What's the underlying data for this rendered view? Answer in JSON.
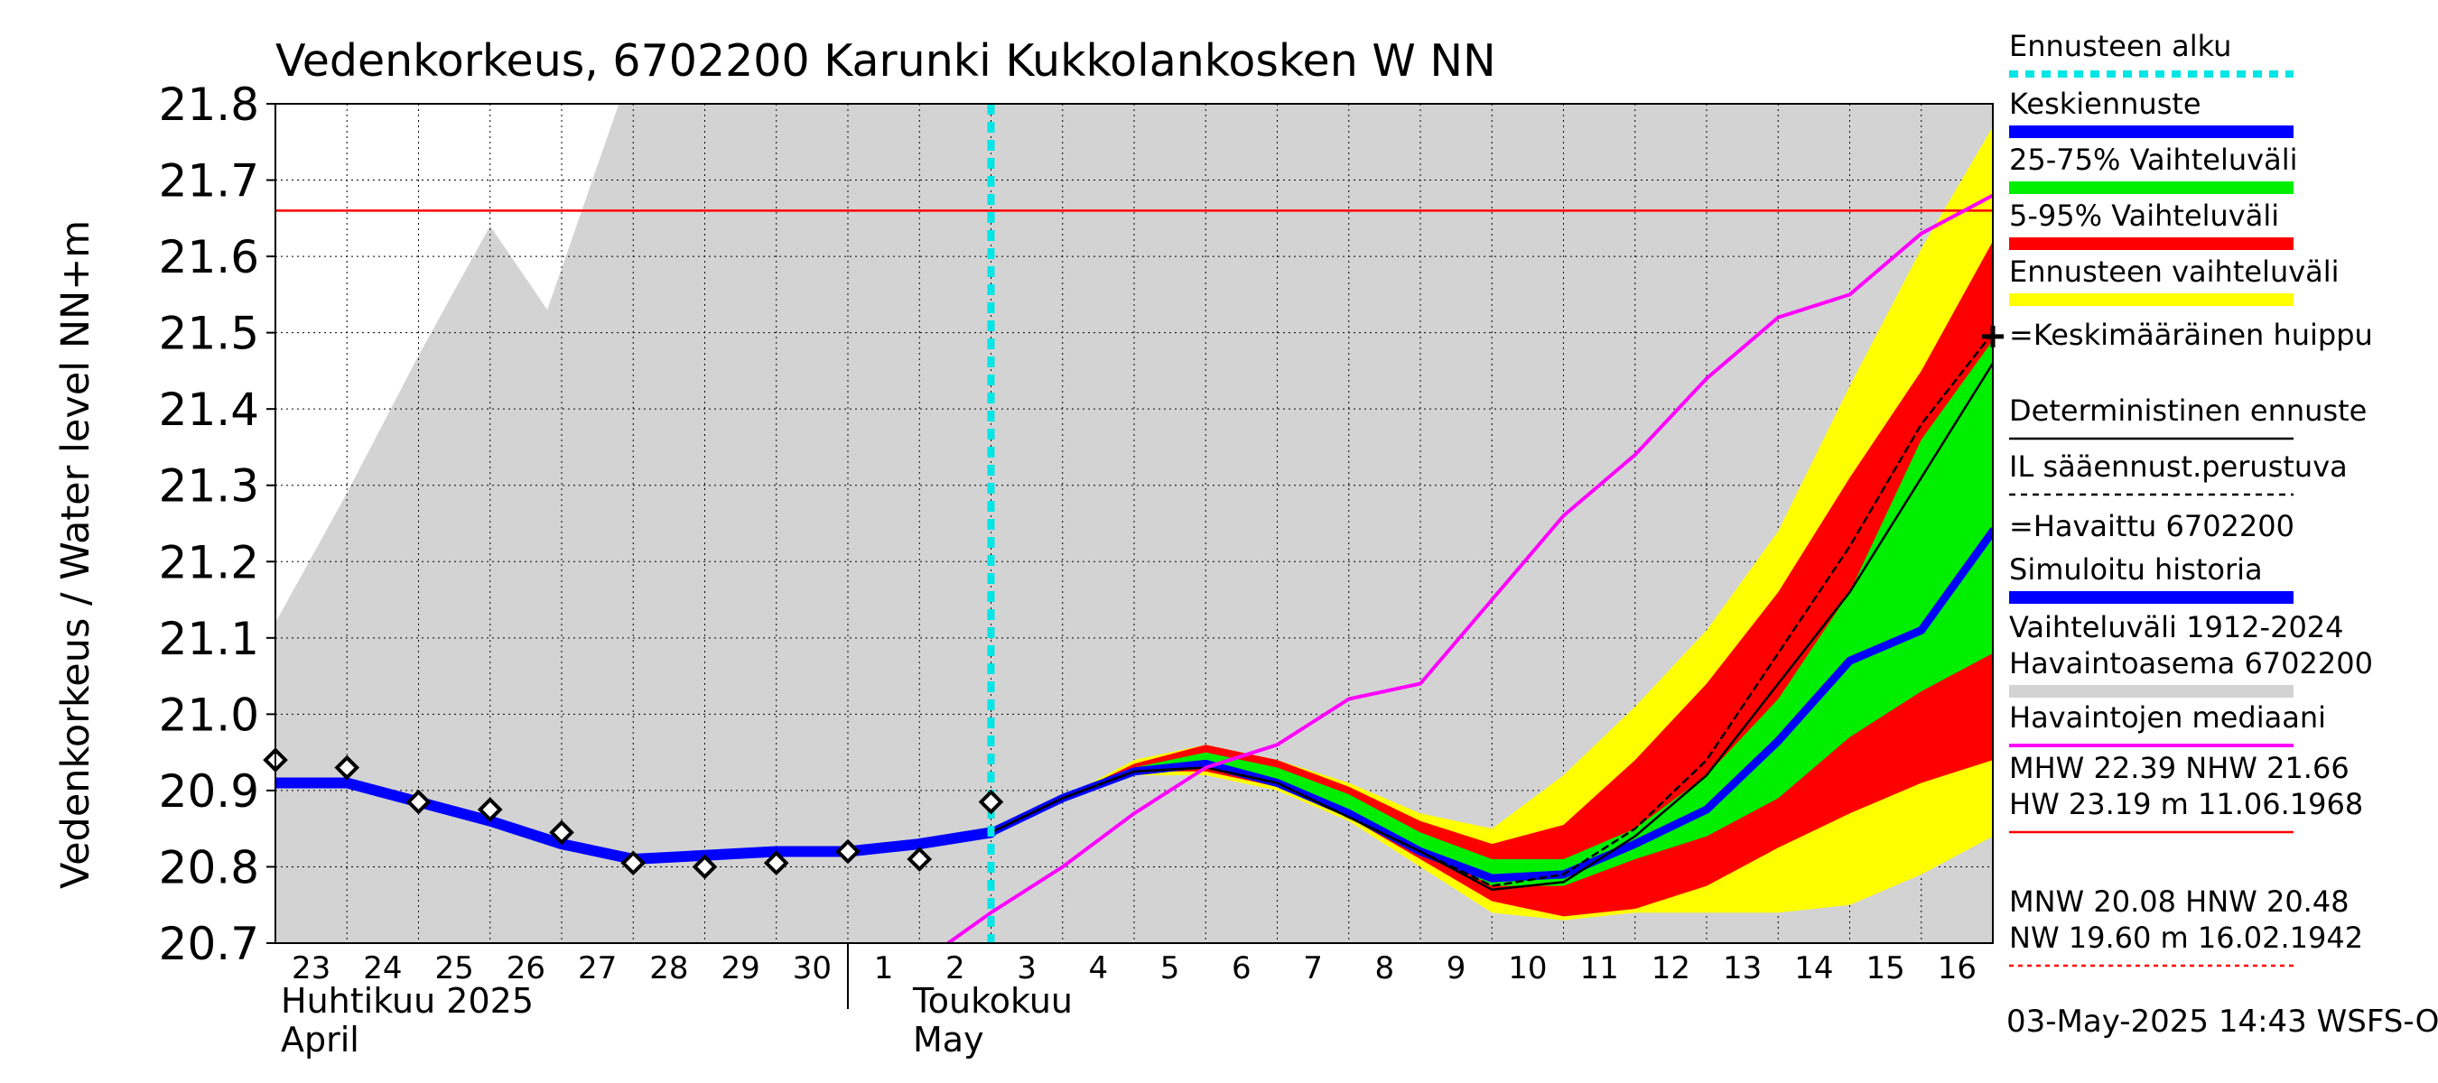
{
  "chart_data": {
    "type": "line",
    "title": "Vedenkorkeus, 6702200 Karunki Kukkolankosken W NN",
    "ylabel": "Vedenkorkeus / Water level   NN+m",
    "ylim": [
      20.7,
      21.8
    ],
    "yticks": [
      "20.7",
      "20.8",
      "20.9",
      "21.0",
      "21.1",
      "21.2",
      "21.3",
      "21.4",
      "21.5",
      "21.6",
      "21.7",
      "21.8"
    ],
    "x_days": [
      "23",
      "24",
      "25",
      "26",
      "27",
      "28",
      "29",
      "30",
      "1",
      "2",
      "3",
      "4",
      "5",
      "6",
      "7",
      "8",
      "9",
      "10",
      "11",
      "12",
      "13",
      "14",
      "15",
      "16"
    ],
    "month_labels": {
      "april_fi": "Huhtikuu  2025",
      "april_en": "April",
      "may_fi": "Toukokuu",
      "may_en": "May"
    },
    "forecast_start_day_index": 10,
    "red_line_value": 21.66,
    "history_range_upper": [
      [
        0,
        21.12
      ],
      [
        1,
        21.29
      ],
      [
        2,
        21.47
      ],
      [
        3,
        21.64
      ],
      [
        3.8,
        21.53
      ],
      [
        4.8,
        21.8
      ],
      [
        24,
        21.8
      ]
    ],
    "band_ennusteen_vaihteluvali": {
      "upper": [
        [
          10,
          20.84
        ],
        [
          11,
          20.89
        ],
        [
          12,
          20.94
        ],
        [
          13,
          20.96
        ],
        [
          14,
          20.94
        ],
        [
          15,
          20.91
        ],
        [
          16,
          20.87
        ],
        [
          17,
          20.85
        ],
        [
          18,
          20.92
        ],
        [
          19,
          21.01
        ],
        [
          20,
          21.11
        ],
        [
          21,
          21.24
        ],
        [
          22,
          21.43
        ],
        [
          23,
          21.61
        ],
        [
          24,
          21.77
        ]
      ],
      "lower": [
        [
          10,
          20.84
        ],
        [
          11,
          20.89
        ],
        [
          12,
          20.92
        ],
        [
          13,
          20.92
        ],
        [
          14,
          20.9
        ],
        [
          15,
          20.86
        ],
        [
          16,
          20.8
        ],
        [
          17,
          20.74
        ],
        [
          18,
          20.73
        ],
        [
          19,
          20.74
        ],
        [
          20,
          20.74
        ],
        [
          21,
          20.74
        ],
        [
          22,
          20.75
        ],
        [
          23,
          20.79
        ],
        [
          24,
          20.84
        ]
      ]
    },
    "band_5_95": {
      "upper": [
        [
          10,
          20.84
        ],
        [
          11,
          20.89
        ],
        [
          12,
          20.935
        ],
        [
          13,
          20.96
        ],
        [
          14,
          20.94
        ],
        [
          15,
          20.905
        ],
        [
          16,
          20.86
        ],
        [
          17,
          20.83
        ],
        [
          18,
          20.855
        ],
        [
          19,
          20.94
        ],
        [
          20,
          21.04
        ],
        [
          21,
          21.16
        ],
        [
          22,
          21.31
        ],
        [
          23,
          21.45
        ],
        [
          24,
          21.62
        ]
      ],
      "lower": [
        [
          10,
          20.84
        ],
        [
          11,
          20.89
        ],
        [
          12,
          20.925
        ],
        [
          13,
          20.925
        ],
        [
          14,
          20.905
        ],
        [
          15,
          20.865
        ],
        [
          16,
          20.81
        ],
        [
          17,
          20.755
        ],
        [
          18,
          20.735
        ],
        [
          19,
          20.745
        ],
        [
          20,
          20.775
        ],
        [
          21,
          20.825
        ],
        [
          22,
          20.87
        ],
        [
          23,
          20.91
        ],
        [
          24,
          20.94
        ]
      ]
    },
    "band_25_75": {
      "upper": [
        [
          10,
          20.84
        ],
        [
          11,
          20.89
        ],
        [
          12,
          20.93
        ],
        [
          13,
          20.95
        ],
        [
          14,
          20.93
        ],
        [
          15,
          20.895
        ],
        [
          16,
          20.845
        ],
        [
          17,
          20.81
        ],
        [
          18,
          20.81
        ],
        [
          19,
          20.85
        ],
        [
          20,
          20.92
        ],
        [
          21,
          21.02
        ],
        [
          22,
          21.16
        ],
        [
          23,
          21.36
        ],
        [
          24,
          21.49
        ]
      ],
      "lower": [
        [
          10,
          20.84
        ],
        [
          11,
          20.89
        ],
        [
          12,
          20.93
        ],
        [
          13,
          20.935
        ],
        [
          14,
          20.91
        ],
        [
          15,
          20.875
        ],
        [
          16,
          20.825
        ],
        [
          17,
          20.775
        ],
        [
          18,
          20.775
        ],
        [
          19,
          20.81
        ],
        [
          20,
          20.84
        ],
        [
          21,
          20.89
        ],
        [
          22,
          20.97
        ],
        [
          23,
          21.03
        ],
        [
          24,
          21.08
        ]
      ]
    },
    "series": [
      {
        "name": "Simuloitu historia",
        "color": "#0000ff",
        "points": [
          [
            0,
            20.91
          ],
          [
            1,
            20.91
          ],
          [
            2,
            20.885
          ],
          [
            3,
            20.86
          ],
          [
            4,
            20.83
          ],
          [
            5,
            20.81
          ],
          [
            6,
            20.815
          ],
          [
            7,
            20.82
          ],
          [
            8,
            20.82
          ],
          [
            9,
            20.83
          ],
          [
            10,
            20.845
          ]
        ]
      },
      {
        "name": "Keskiennuste",
        "color": "#0000ff",
        "points": [
          [
            10,
            20.845
          ],
          [
            11,
            20.89
          ],
          [
            12,
            20.925
          ],
          [
            13,
            20.935
          ],
          [
            14,
            20.91
          ],
          [
            15,
            20.87
          ],
          [
            16,
            20.82
          ],
          [
            17,
            20.785
          ],
          [
            18,
            20.79
          ],
          [
            19,
            20.83
          ],
          [
            20,
            20.875
          ],
          [
            21,
            20.965
          ],
          [
            22,
            21.07
          ],
          [
            23,
            21.11
          ],
          [
            24,
            21.24
          ]
        ]
      },
      {
        "name": "Deterministinen ennuste",
        "color": "#000000",
        "points": [
          [
            10,
            20.845
          ],
          [
            11,
            20.89
          ],
          [
            12,
            20.925
          ],
          [
            13,
            20.93
          ],
          [
            14,
            20.91
          ],
          [
            15,
            20.865
          ],
          [
            16,
            20.82
          ],
          [
            17,
            20.77
          ],
          [
            18,
            20.78
          ],
          [
            19,
            20.84
          ],
          [
            20,
            20.92
          ],
          [
            21,
            21.04
          ],
          [
            22,
            21.16
          ],
          [
            23,
            21.31
          ],
          [
            24,
            21.46
          ]
        ]
      },
      {
        "name": "IL sääennust.perustuva",
        "color": "#000000",
        "points": [
          [
            10,
            20.845
          ],
          [
            11,
            20.89
          ],
          [
            12,
            20.925
          ],
          [
            13,
            20.93
          ],
          [
            14,
            20.91
          ],
          [
            15,
            20.865
          ],
          [
            16,
            20.82
          ],
          [
            17,
            20.775
          ],
          [
            18,
            20.79
          ],
          [
            19,
            20.85
          ],
          [
            20,
            20.94
          ],
          [
            21,
            21.08
          ],
          [
            22,
            21.22
          ],
          [
            23,
            21.38
          ],
          [
            24,
            21.5
          ]
        ]
      },
      {
        "name": "Havaintojen mediaani",
        "color": "#ff00ff",
        "points": [
          [
            9.4,
            20.7
          ],
          [
            10,
            20.74
          ],
          [
            11,
            20.8
          ],
          [
            12,
            20.87
          ],
          [
            13,
            20.93
          ],
          [
            14,
            20.96
          ],
          [
            15,
            21.02
          ],
          [
            16,
            21.04
          ],
          [
            17,
            21.15
          ],
          [
            18,
            21.26
          ],
          [
            19,
            21.34
          ],
          [
            20,
            21.44
          ],
          [
            21,
            21.52
          ],
          [
            22,
            21.55
          ],
          [
            23,
            21.63
          ],
          [
            24,
            21.68
          ]
        ]
      }
    ],
    "observed": [
      [
        0,
        20.94
      ],
      [
        1,
        20.93
      ],
      [
        2,
        20.885
      ],
      [
        3,
        20.875
      ],
      [
        4,
        20.845
      ],
      [
        5,
        20.805
      ],
      [
        6,
        20.8
      ],
      [
        7,
        20.805
      ],
      [
        8,
        20.82
      ],
      [
        9,
        20.81
      ],
      [
        10,
        20.885
      ]
    ],
    "peak_marker": [
      24,
      21.495
    ],
    "legend": [
      {
        "label": "Ennusteen alku",
        "color": "#00e5e5",
        "style": "dashed"
      },
      {
        "label": "Keskiennuste",
        "color": "#0000ff",
        "style": "thick"
      },
      {
        "label": "25-75% Vaihteluväli",
        "color": "#00ee00",
        "style": "thick"
      },
      {
        "label": "5-95% Vaihteluväli",
        "color": "#ff0000",
        "style": "thick"
      },
      {
        "label": "Ennusteen vaihteluväli",
        "color": "#ffff00",
        "style": "thick"
      },
      {
        "label": "=Keskimääräinen huippu",
        "color": "#000000",
        "style": "plus"
      },
      {
        "label": "Deterministinen ennuste",
        "color": "#000000",
        "style": "thin"
      },
      {
        "label": "IL sääennust.perustuva",
        "color": "#000000",
        "style": "dotted"
      },
      {
        "label": "=Havaittu 6702200",
        "color": "#000000",
        "style": "diamond"
      },
      {
        "label": "Simuloitu historia",
        "color": "#0000ff",
        "style": "thick"
      },
      {
        "label": "Vaihteluväli 1912-2024\n Havaintoasema 6702200",
        "color": "#d3d3d3",
        "style": "thick"
      },
      {
        "label": "Havaintojen mediaani",
        "color": "#ff00ff",
        "style": "medium"
      },
      {
        "label": "MHW  22.39 NHW  21.66\nHW  23.19 m 11.06.1968",
        "color": "#ff0000",
        "style": "thin"
      },
      {
        "label": "MNW  20.08 HNW  20.48\nNW  19.60 m 16.02.1942",
        "color": "#ff0000",
        "style": "dashed-thin"
      }
    ],
    "timestamp": "03-May-2025 14:43 WSFS-O"
  }
}
